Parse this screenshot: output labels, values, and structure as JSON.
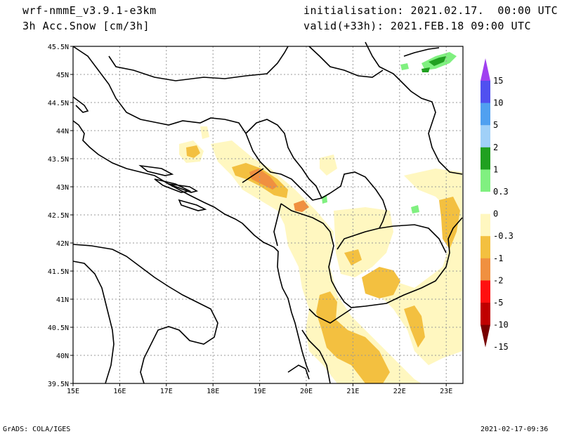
{
  "header": {
    "model": "wrf-nmmE_v3.9.1-e3km",
    "field": "3h Acc.Snow [cm/3h]",
    "init": "initialisation: 2021.02.17.  00:00 UTC",
    "valid": "valid(+33h): 2021.FEB.18 09:00 UTC"
  },
  "footer": {
    "left": "GrADS: COLA/IGES",
    "right": "2021-02-17-09:36"
  },
  "map": {
    "lon_labels": [
      "15E",
      "16E",
      "17E",
      "18E",
      "19E",
      "20E",
      "21E",
      "22E",
      "23E"
    ],
    "lat_labels": [
      "45.5N",
      "45N",
      "44.5N",
      "44N",
      "43.5N",
      "43N",
      "42.5N",
      "42N",
      "41.5N",
      "41N",
      "40.5N",
      "40N",
      "39.5N"
    ]
  },
  "colorbar": {
    "labels": [
      "15",
      "10",
      "5",
      "2",
      "1",
      "0.3",
      "0",
      "-0.3",
      "-1",
      "-2",
      "-5",
      "-10",
      "-15"
    ],
    "colors": {
      "top_arrow": "#a040f0",
      "15": "#5050f0",
      "10": "#50a0f0",
      "5": "#a0d0f8",
      "2": "#20a020",
      "1": "#80f080",
      "0.3": "#ffffff",
      "-0.3": "#fff7c0",
      "-1": "#f3c040",
      "-2": "#f09040",
      "-5": "#ff1010",
      "-10": "#c00000",
      "bottom_arrow": "#780000"
    }
  }
}
